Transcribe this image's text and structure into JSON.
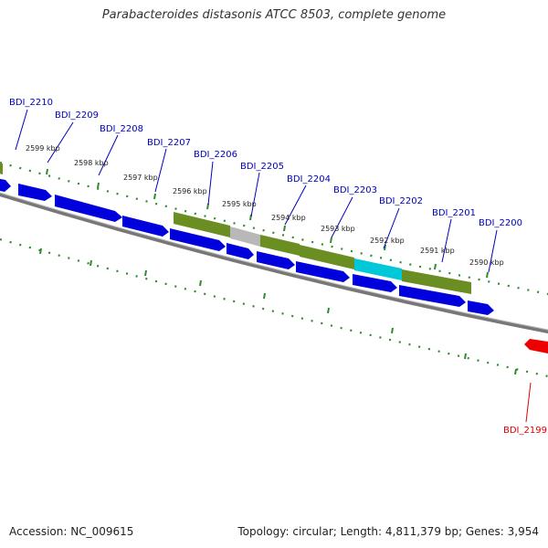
{
  "title": "Parabacteroides distasonis ATCC 8503, complete genome",
  "footer": {
    "accession": "Accession: NC_009615",
    "summary": "Topology: circular; Length: 4,811,379 bp; Genes: 3,954"
  },
  "colors": {
    "forward_gene": "#0000dd",
    "reverse_gene_green": "#6b8e23",
    "reverse_gene_grey": "#b8b8b8",
    "reverse_gene_cyan": "#00c8d8",
    "highlight_gene": "#ee0000",
    "backbone": "#777777",
    "tick": "#2e8b2e",
    "label_blue": "#0000bb",
    "label_red": "#dd0000"
  },
  "gene_labels": [
    {
      "name": "BDI_2210",
      "color": "blue"
    },
    {
      "name": "BDI_2209",
      "color": "blue"
    },
    {
      "name": "BDI_2208",
      "color": "blue"
    },
    {
      "name": "BDI_2207",
      "color": "blue"
    },
    {
      "name": "BDI_2206",
      "color": "blue"
    },
    {
      "name": "BDI_2205",
      "color": "blue"
    },
    {
      "name": "BDI_2204",
      "color": "blue"
    },
    {
      "name": "BDI_2203",
      "color": "blue"
    },
    {
      "name": "BDI_2202",
      "color": "blue"
    },
    {
      "name": "BDI_2201",
      "color": "blue"
    },
    {
      "name": "BDI_2200",
      "color": "blue"
    },
    {
      "name": "BDI_2199",
      "color": "red"
    }
  ],
  "kbp_labels": [
    "2599 kbp",
    "2598 kbp",
    "2597 kbp",
    "2596 kbp",
    "2595 kbp",
    "2594 kbp",
    "2593 kbp",
    "2592 kbp",
    "2591 kbp",
    "2590 kbp"
  ]
}
